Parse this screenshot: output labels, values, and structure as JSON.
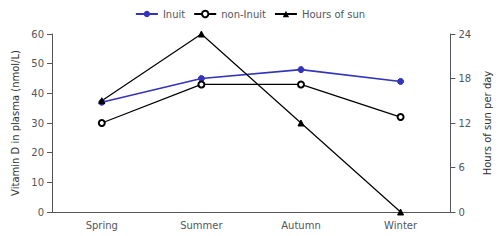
{
  "chart_data": {
    "type": "line",
    "categories": [
      "Spring",
      "Summer",
      "Autumn",
      "Winter"
    ],
    "series": [
      {
        "name": "Inuit",
        "color": "#3333bb",
        "values": [
          37,
          45,
          48,
          44
        ],
        "marker": "circle"
      },
      {
        "name": "non-Inuit",
        "color": "#000000",
        "values": [
          30,
          43,
          43,
          32
        ],
        "marker": "emptyCircle"
      },
      {
        "name": "Hours of sun",
        "color": "#000000",
        "values": [
          15,
          24,
          12,
          0
        ],
        "marker": "triangle",
        "axis": "y2"
      }
    ],
    "ylabel": "Vitamin D in plasma (nmol/L)",
    "y2label": "Hours of sun per day",
    "ylim": [
      0,
      60
    ],
    "yticks": [
      0,
      10,
      20,
      30,
      40,
      50,
      60
    ],
    "y2lim": [
      0,
      24
    ],
    "y2ticks": [
      0,
      6,
      12,
      18,
      24
    ],
    "grid": false,
    "legend": "top"
  }
}
